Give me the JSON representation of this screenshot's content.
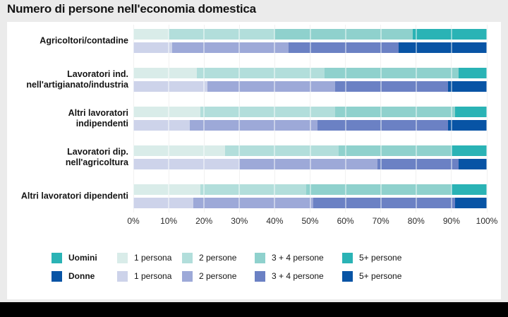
{
  "title": "Numero di persone nell'economia domestica",
  "colors": {
    "background": "#ebebeb",
    "panel": "#ffffff",
    "bottom_bar": "#000000",
    "gridline": "#e6e6e6",
    "text": "#141414",
    "uomini_shades": [
      "#d9ece9",
      "#b2dedb",
      "#8fd1cd",
      "#2ab3b5"
    ],
    "donne_shades": [
      "#cdd3ea",
      "#9da9d8",
      "#6b81c4",
      "#0854a5"
    ]
  },
  "chart_data": {
    "type": "bar",
    "orientation": "horizontal",
    "stacked": true,
    "unit": "percent",
    "title": "Numero di persone nell'economia domestica",
    "xlim": [
      0,
      100
    ],
    "grid": true,
    "x_ticks": [
      "0%",
      "10%",
      "20%",
      "30%",
      "40%",
      "50%",
      "60%",
      "70%",
      "80%",
      "90%",
      "100%"
    ],
    "x_tick_values": [
      0,
      10,
      20,
      30,
      40,
      50,
      60,
      70,
      80,
      90,
      100
    ],
    "series_names": [
      "Uomini",
      "Donne"
    ],
    "segment_labels": [
      "1 persona",
      "2 persone",
      "3 + 4 persone",
      "5+ persone"
    ],
    "categories": [
      {
        "label": "Agricoltori/contadine",
        "label_lines": [
          "Agricoltori/contadine"
        ],
        "uomini": [
          10,
          30,
          39,
          21
        ],
        "donne": [
          11,
          33,
          31,
          25
        ]
      },
      {
        "label": "Lavoratori ind. nell'artigianato/industria",
        "label_lines": [
          "Lavoratori ind.",
          "nell'artigianato/industria"
        ],
        "uomini": [
          18,
          36,
          38,
          8
        ],
        "donne": [
          21,
          36,
          32,
          11
        ]
      },
      {
        "label": "Altri lavoratori indipendenti",
        "label_lines": [
          "Altri lavoratori",
          "indipendenti"
        ],
        "uomini": [
          19,
          38,
          34,
          9
        ],
        "donne": [
          16,
          36,
          37,
          11
        ]
      },
      {
        "label": "Lavoratori dip. nell'agricoltura",
        "label_lines": [
          "Lavoratori dip.",
          "nell'agricoltura"
        ],
        "uomini": [
          26,
          32,
          32,
          10
        ],
        "donne": [
          30,
          39,
          23,
          8
        ]
      },
      {
        "label": "Altri lavoratori dipendenti",
        "label_lines": [
          "Altri lavoratori dipendenti"
        ],
        "uomini": [
          19,
          30,
          41,
          10
        ],
        "donne": [
          17,
          34,
          40,
          9
        ]
      }
    ],
    "legend_position": "bottom"
  },
  "legend": {
    "rows": [
      {
        "series": "Uomini",
        "items": [
          "1 persona",
          "2 persone",
          "3 + 4 persone",
          "5+ persone"
        ]
      },
      {
        "series": "Donne",
        "items": [
          "1 persona",
          "2 persone",
          "3 + 4 persone",
          "5+ persone"
        ]
      }
    ]
  }
}
